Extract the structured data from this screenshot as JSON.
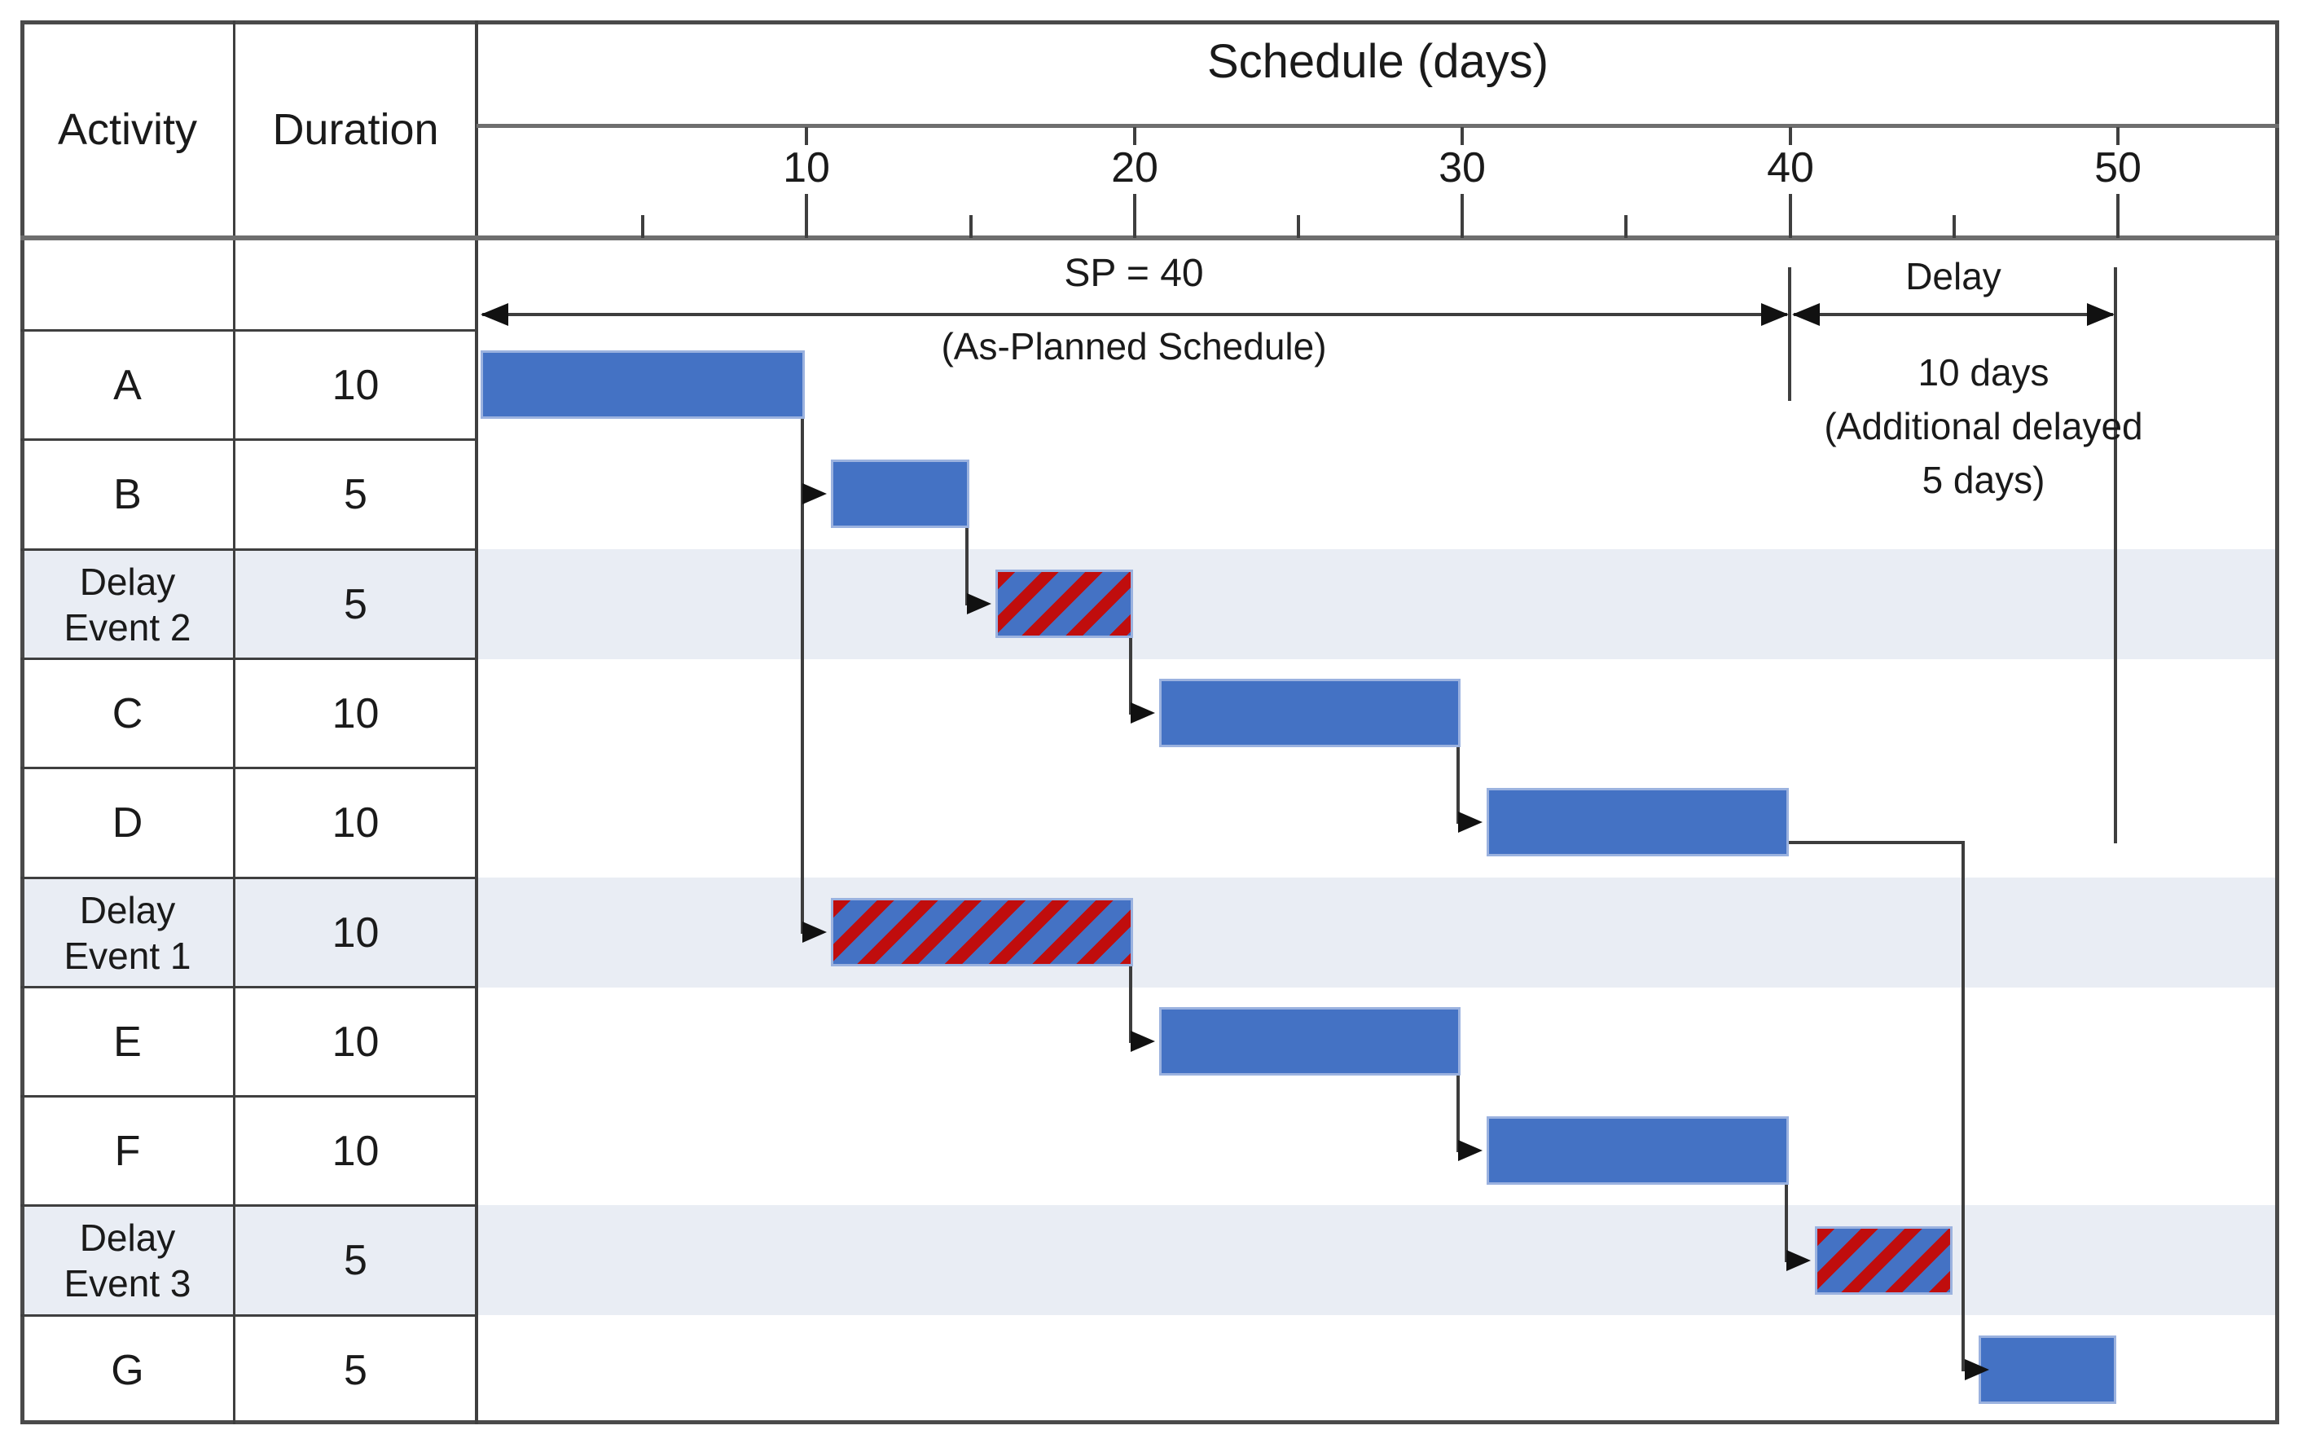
{
  "header": {
    "activity": "Activity",
    "duration": "Duration"
  },
  "annotations": {
    "sp_line1": "SP = 40",
    "sp_line2": "(As-Planned Schedule)",
    "delay_title": "Delay",
    "delay_line1": "10 days",
    "delay_line2": "(Additional delayed",
    "delay_line3": "5 days)"
  },
  "chart_data": {
    "type": "gantt",
    "x_axis": {
      "label": "Schedule (days)",
      "major_ticks": [
        10,
        20,
        30,
        40,
        50
      ],
      "minor_ticks": [
        5,
        15,
        25,
        35,
        45
      ],
      "range": [
        0,
        55
      ],
      "unit": "days"
    },
    "tasks": [
      {
        "name": "A",
        "duration": 10,
        "kind": "task",
        "bar": {
          "start": 0,
          "end": 10
        }
      },
      {
        "name": "B",
        "duration": 5,
        "kind": "task",
        "bar": {
          "start": 10,
          "end": 15
        }
      },
      {
        "name": "Delay Event 2",
        "duration": 5,
        "kind": "delay",
        "bar": {
          "start": 15,
          "end": 20
        }
      },
      {
        "name": "C",
        "duration": 10,
        "kind": "task",
        "bar": {
          "start": 20,
          "end": 30
        }
      },
      {
        "name": "D",
        "duration": 10,
        "kind": "task",
        "bar": {
          "start": 30,
          "end": 40
        }
      },
      {
        "name": "Delay Event 1",
        "duration": 10,
        "kind": "delay",
        "bar": {
          "start": 10,
          "end": 20
        }
      },
      {
        "name": "E",
        "duration": 10,
        "kind": "task",
        "bar": {
          "start": 20,
          "end": 30
        }
      },
      {
        "name": "F",
        "duration": 10,
        "kind": "task",
        "bar": {
          "start": 30,
          "end": 40
        }
      },
      {
        "name": "Delay Event 3",
        "duration": 5,
        "kind": "delay",
        "bar": {
          "start": 40,
          "end": 45
        }
      },
      {
        "name": "G",
        "duration": 5,
        "kind": "task",
        "bar": {
          "start": 45,
          "end": 50
        }
      }
    ],
    "dependencies": [
      {
        "from": "A",
        "to": "B"
      },
      {
        "from": "A",
        "to": "Delay Event 1"
      },
      {
        "from": "B",
        "to": "Delay Event 2"
      },
      {
        "from": "Delay Event 2",
        "to": "C"
      },
      {
        "from": "C",
        "to": "D"
      },
      {
        "from": "D",
        "to": "G",
        "route": "elbow"
      },
      {
        "from": "Delay Event 1",
        "to": "E"
      },
      {
        "from": "E",
        "to": "F"
      },
      {
        "from": "F",
        "to": "Delay Event 3"
      }
    ],
    "as_planned_duration_days": 40,
    "total_delay_days": 10,
    "additional_delay_days": 5
  },
  "colors": {
    "task_bar": "#4472C4",
    "bar_edge": "#9BB2DF",
    "delay_hatch_red": "#C00D0D",
    "delay_row_shade": "#E9EDF4",
    "grid_dark": "#3F3F3F",
    "axis_line": "#6E6E6E",
    "connector": "#3D3D3D"
  }
}
